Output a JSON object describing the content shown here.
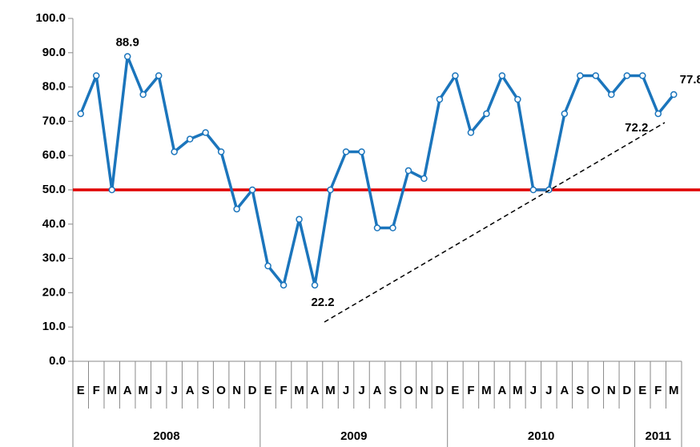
{
  "chart_data": {
    "type": "line",
    "groups": [
      {
        "name": "2008",
        "categories": [
          "E",
          "F",
          "M",
          "A",
          "M",
          "J",
          "J",
          "A",
          "S",
          "O",
          "N",
          "D"
        ]
      },
      {
        "name": "2009",
        "categories": [
          "E",
          "F",
          "M",
          "A",
          "M",
          "J",
          "J",
          "A",
          "S",
          "O",
          "N",
          "D"
        ]
      },
      {
        "name": "2010",
        "categories": [
          "E",
          "F",
          "M",
          "A",
          "M",
          "J",
          "J",
          "A",
          "S",
          "O",
          "N",
          "D"
        ]
      },
      {
        "name": "2011",
        "categories": [
          "E",
          "F",
          "M"
        ]
      }
    ],
    "values": [
      72.2,
      83.3,
      50.0,
      88.9,
      77.8,
      83.3,
      61.1,
      64.8,
      66.7,
      61.1,
      44.4,
      50.0,
      27.8,
      22.2,
      41.4,
      22.2,
      50.0,
      61.1,
      61.1,
      38.9,
      38.9,
      55.6,
      53.3,
      76.4,
      83.3,
      66.7,
      72.2,
      83.3,
      76.4,
      50.0,
      50.0,
      72.2,
      83.3,
      83.3,
      77.8,
      83.3,
      83.3,
      72.2,
      77.8
    ],
    "value_labels": [
      null,
      null,
      null,
      "88.9",
      null,
      null,
      null,
      null,
      null,
      null,
      null,
      null,
      null,
      null,
      null,
      "22.2",
      null,
      null,
      null,
      null,
      null,
      null,
      null,
      null,
      null,
      null,
      null,
      null,
      null,
      null,
      null,
      null,
      null,
      null,
      null,
      null,
      null,
      "72.2",
      "77.8"
    ],
    "color": "#1b75bc",
    "reference_line": 50,
    "reference_color": "#e00000",
    "ylim": [
      0,
      100
    ],
    "yticks": [
      {
        "value": 0,
        "label": "0.0"
      },
      {
        "value": 10,
        "label": "10.0"
      },
      {
        "value": 20,
        "label": "20.0"
      },
      {
        "value": 30,
        "label": "30.0"
      },
      {
        "value": 40,
        "label": "40.0"
      },
      {
        "value": 50,
        "label": "50.0"
      },
      {
        "value": 60,
        "label": "60.0"
      },
      {
        "value": 70,
        "label": "70.0"
      },
      {
        "value": 80,
        "label": "80.0"
      },
      {
        "value": 90,
        "label": "90.0"
      },
      {
        "value": 100,
        "label": "100.0"
      }
    ]
  }
}
